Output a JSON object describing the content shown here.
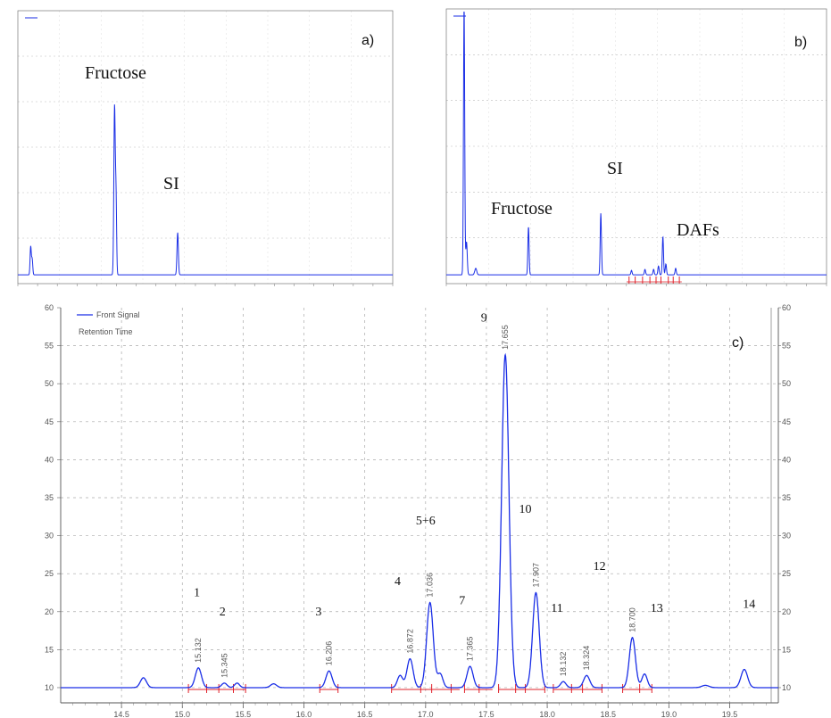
{
  "chart_data": [
    {
      "id": "a",
      "type": "line",
      "panel_label": "a)",
      "annotations": [
        "Fructose",
        "SI"
      ],
      "xlim": [
        0,
        38
      ],
      "ylim": [
        0,
        310
      ],
      "legend_position": "top-left",
      "grid": true,
      "peaks": [
        {
          "x": 1.3,
          "height": 32,
          "width": 0.06
        },
        {
          "x": 1.45,
          "height": 18,
          "width": 0.06
        },
        {
          "x": 9.8,
          "height": 190,
          "width": 0.07
        },
        {
          "x": 9.95,
          "height": 85,
          "width": 0.06
        },
        {
          "x": 16.2,
          "height": 48,
          "width": 0.07
        }
      ],
      "baseline": 10
    },
    {
      "id": "b",
      "type": "line",
      "panel_label": "b)",
      "annotations": [
        "Fructose",
        "SI",
        "DAFs"
      ],
      "xlim": [
        0,
        31
      ],
      "ylim": [
        0,
        250
      ],
      "legend_position": "top-left",
      "grid": true,
      "peaks": [
        {
          "x": 1.45,
          "height": 245,
          "width": 0.05
        },
        {
          "x": 1.65,
          "height": 30,
          "width": 0.06
        },
        {
          "x": 2.4,
          "height": 6,
          "width": 0.08
        },
        {
          "x": 6.7,
          "height": 44,
          "width": 0.05
        },
        {
          "x": 12.6,
          "height": 56,
          "width": 0.05
        },
        {
          "x": 15.1,
          "height": 4,
          "width": 0.05
        },
        {
          "x": 16.2,
          "height": 5,
          "width": 0.05
        },
        {
          "x": 16.9,
          "height": 5,
          "width": 0.05
        },
        {
          "x": 17.3,
          "height": 8,
          "width": 0.05
        },
        {
          "x": 17.66,
          "height": 35,
          "width": 0.05
        },
        {
          "x": 17.9,
          "height": 10,
          "width": 0.05
        },
        {
          "x": 18.7,
          "height": 6,
          "width": 0.05
        }
      ],
      "baseline": 8
    },
    {
      "id": "c",
      "type": "line",
      "panel_label": "c)",
      "legend": [
        "Front Signal",
        "Retention Time"
      ],
      "xlim": [
        14.0,
        19.9
      ],
      "ylim": [
        8,
        60
      ],
      "y_ticks": [
        10,
        15,
        20,
        25,
        30,
        35,
        40,
        45,
        50,
        55,
        60
      ],
      "x_ticks": [
        "14.5",
        "15.0",
        "15.5",
        "16.0",
        "16.5",
        "17.0",
        "17.5",
        "18.0",
        "18.5",
        "19.0",
        "19.5"
      ],
      "x_tick_values": [
        14.5,
        15.0,
        15.5,
        16.0,
        16.5,
        17.0,
        17.5,
        18.0,
        18.5,
        19.0,
        19.5
      ],
      "grid": true,
      "baseline": 10,
      "peaks": [
        {
          "x": 14.68,
          "height": 1.3,
          "width": 0.025
        },
        {
          "x": 15.132,
          "height": 2.6,
          "width": 0.025,
          "label": "15.132"
        },
        {
          "x": 15.345,
          "height": 0.6,
          "width": 0.022,
          "label": "15.345"
        },
        {
          "x": 15.45,
          "height": 0.6,
          "width": 0.02
        },
        {
          "x": 15.75,
          "height": 0.5,
          "width": 0.025
        },
        {
          "x": 16.206,
          "height": 2.2,
          "width": 0.025,
          "label": "16.206"
        },
        {
          "x": 16.79,
          "height": 1.6,
          "width": 0.022
        },
        {
          "x": 16.872,
          "height": 3.8,
          "width": 0.025,
          "label": "16.872"
        },
        {
          "x": 17.036,
          "height": 11.2,
          "width": 0.027,
          "label": "17.036"
        },
        {
          "x": 17.12,
          "height": 1.8,
          "width": 0.022
        },
        {
          "x": 17.365,
          "height": 2.8,
          "width": 0.025,
          "label": "17.365"
        },
        {
          "x": 17.655,
          "height": 43.8,
          "width": 0.03,
          "label": "17.655"
        },
        {
          "x": 17.907,
          "height": 12.5,
          "width": 0.027,
          "label": "17.907"
        },
        {
          "x": 18.132,
          "height": 0.8,
          "width": 0.022,
          "label": "18.132"
        },
        {
          "x": 18.324,
          "height": 1.6,
          "width": 0.025,
          "label": "18.324"
        },
        {
          "x": 18.7,
          "height": 6.6,
          "width": 0.025,
          "label": "18.700"
        },
        {
          "x": 18.8,
          "height": 1.8,
          "width": 0.022
        },
        {
          "x": 19.3,
          "height": 0.3,
          "width": 0.03
        },
        {
          "x": 19.62,
          "height": 2.4,
          "width": 0.027
        }
      ],
      "peak_numbers": [
        {
          "text": "1",
          "x": 15.12,
          "y": 22
        },
        {
          "text": "2",
          "x": 15.33,
          "y": 19.5
        },
        {
          "text": "3",
          "x": 16.12,
          "y": 19.5
        },
        {
          "text": "4",
          "x": 16.77,
          "y": 23.5
        },
        {
          "text": "5+6",
          "x": 17.0,
          "y": 31.5
        },
        {
          "text": "7",
          "x": 17.3,
          "y": 21
        },
        {
          "text": "9",
          "x": 17.48,
          "y": 58.2
        },
        {
          "text": "10",
          "x": 17.82,
          "y": 33
        },
        {
          "text": "11",
          "x": 18.08,
          "y": 20
        },
        {
          "text": "12",
          "x": 18.43,
          "y": 25.5
        },
        {
          "text": "13",
          "x": 18.9,
          "y": 20
        },
        {
          "text": "14",
          "x": 19.66,
          "y": 20.5
        }
      ]
    }
  ]
}
